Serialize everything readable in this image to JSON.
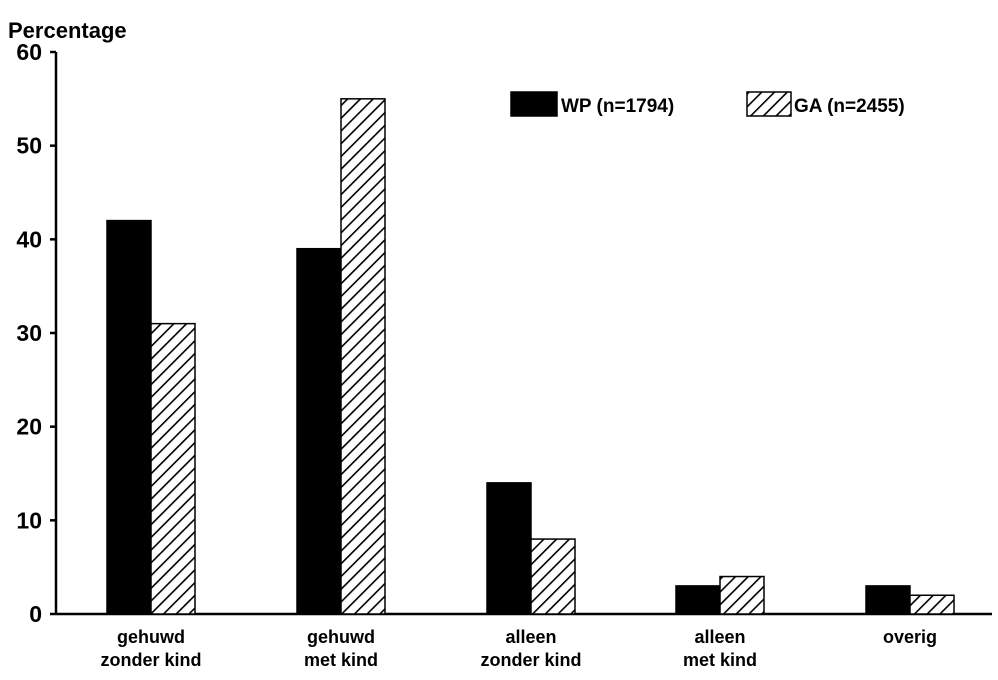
{
  "chart_data": {
    "type": "bar",
    "title": "",
    "ylabel": "Percentage",
    "xlabel": "",
    "ylim": [
      0,
      60
    ],
    "yticks": [
      0,
      10,
      20,
      30,
      40,
      50,
      60
    ],
    "categories": [
      [
        "gehuwd",
        "zonder kind"
      ],
      [
        "gehuwd",
        "met kind"
      ],
      [
        "alleen",
        "zonder kind"
      ],
      [
        "alleen",
        "met kind"
      ],
      [
        "overig"
      ]
    ],
    "series": [
      {
        "name": "WP (n=1794)",
        "values": [
          42,
          39,
          14,
          3,
          3
        ],
        "fill": "solid",
        "color": "#000000"
      },
      {
        "name": "GA (n=2455)",
        "values": [
          31,
          55,
          8,
          4,
          2
        ],
        "fill": "hatched",
        "color": "#000000"
      }
    ],
    "legend_position": "top-right",
    "grid": false
  }
}
